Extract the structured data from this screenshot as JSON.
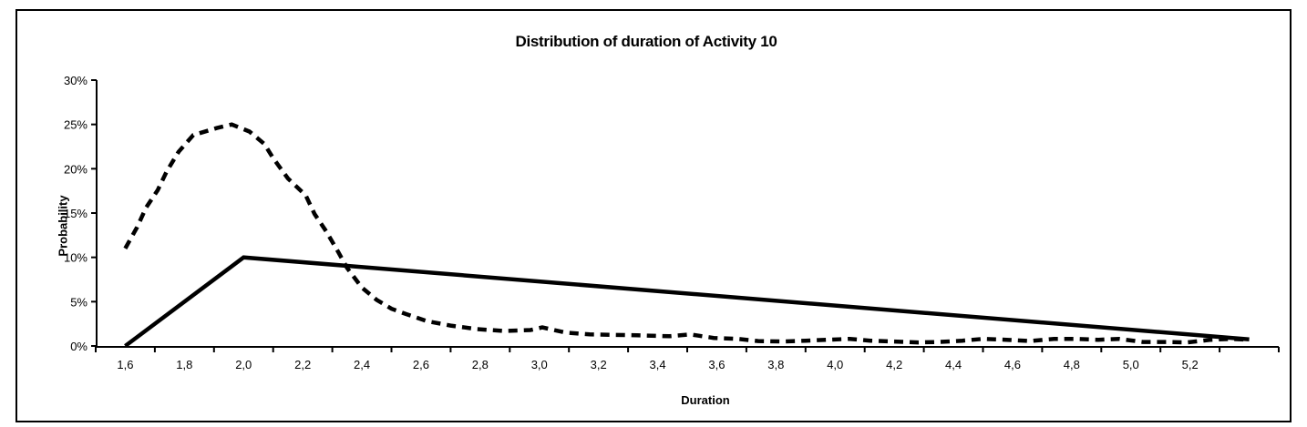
{
  "chart_data": {
    "type": "line",
    "title": "Distribution of duration of Activity 10",
    "xlabel": "Duration",
    "ylabel": "Probability",
    "decimal_separator": ",",
    "grid": false,
    "legend": "none",
    "background_color": "#ffffff",
    "line_color": "#000000",
    "xlim": [
      1.5,
      5.5
    ],
    "ylim": [
      0,
      30
    ],
    "x_tick_values": [
      1.6,
      1.8,
      2.0,
      2.2,
      2.4,
      2.6,
      2.8,
      3.0,
      3.2,
      3.4,
      3.6,
      3.8,
      4.0,
      4.2,
      4.4,
      4.6,
      4.8,
      5.0,
      5.2
    ],
    "x_tick_labels": [
      "1,6",
      "1,8",
      "2,0",
      "2,2",
      "2,4",
      "2,6",
      "2,8",
      "3,0",
      "3,2",
      "3,4",
      "3,6",
      "3,8",
      "4,0",
      "4,2",
      "4,4",
      "4,6",
      "4,8",
      "5,0",
      "5,2"
    ],
    "y_tick_values": [
      0,
      5,
      10,
      15,
      20,
      25,
      30
    ],
    "y_tick_labels": [
      "0%",
      "5%",
      "10%",
      "15%",
      "20%",
      "25%",
      "30%"
    ],
    "series": [
      {
        "name": "dashed-distribution",
        "style": "dashed",
        "color": "#000000",
        "points": [
          [
            1.6,
            11.0
          ],
          [
            1.64,
            13.4
          ],
          [
            1.67,
            15.6
          ],
          [
            1.71,
            17.6
          ],
          [
            1.74,
            19.7
          ],
          [
            1.78,
            21.9
          ],
          [
            1.83,
            23.8
          ],
          [
            1.91,
            24.6
          ],
          [
            1.96,
            25.0
          ],
          [
            2.02,
            24.2
          ],
          [
            2.07,
            22.8
          ],
          [
            2.1,
            21.2
          ],
          [
            2.15,
            18.9
          ],
          [
            2.21,
            17.0
          ],
          [
            2.24,
            14.9
          ],
          [
            2.28,
            12.9
          ],
          [
            2.32,
            10.6
          ],
          [
            2.35,
            8.8
          ],
          [
            2.4,
            6.6
          ],
          [
            2.45,
            5.2
          ],
          [
            2.5,
            4.2
          ],
          [
            2.55,
            3.6
          ],
          [
            2.62,
            2.8
          ],
          [
            2.7,
            2.3
          ],
          [
            2.79,
            1.9
          ],
          [
            2.88,
            1.7
          ],
          [
            2.97,
            1.8
          ],
          [
            3.01,
            2.1
          ],
          [
            3.09,
            1.5
          ],
          [
            3.17,
            1.3
          ],
          [
            3.25,
            1.25
          ],
          [
            3.33,
            1.2
          ],
          [
            3.44,
            1.1
          ],
          [
            3.51,
            1.3
          ],
          [
            3.59,
            0.9
          ],
          [
            3.67,
            0.8
          ],
          [
            3.74,
            0.55
          ],
          [
            3.82,
            0.5
          ],
          [
            3.9,
            0.6
          ],
          [
            3.97,
            0.7
          ],
          [
            4.05,
            0.8
          ],
          [
            4.12,
            0.6
          ],
          [
            4.2,
            0.5
          ],
          [
            4.28,
            0.4
          ],
          [
            4.35,
            0.45
          ],
          [
            4.43,
            0.6
          ],
          [
            4.5,
            0.8
          ],
          [
            4.58,
            0.7
          ],
          [
            4.66,
            0.55
          ],
          [
            4.74,
            0.8
          ],
          [
            4.81,
            0.8
          ],
          [
            4.89,
            0.7
          ],
          [
            4.96,
            0.8
          ],
          [
            5.04,
            0.45
          ],
          [
            5.12,
            0.45
          ],
          [
            5.19,
            0.4
          ],
          [
            5.27,
            0.7
          ],
          [
            5.34,
            0.8
          ],
          [
            5.4,
            0.7
          ]
        ]
      },
      {
        "name": "solid-triangular-distribution",
        "style": "solid",
        "color": "#000000",
        "points": [
          [
            1.6,
            0.0
          ],
          [
            2.0,
            10.0
          ],
          [
            5.4,
            0.75
          ]
        ]
      }
    ]
  }
}
